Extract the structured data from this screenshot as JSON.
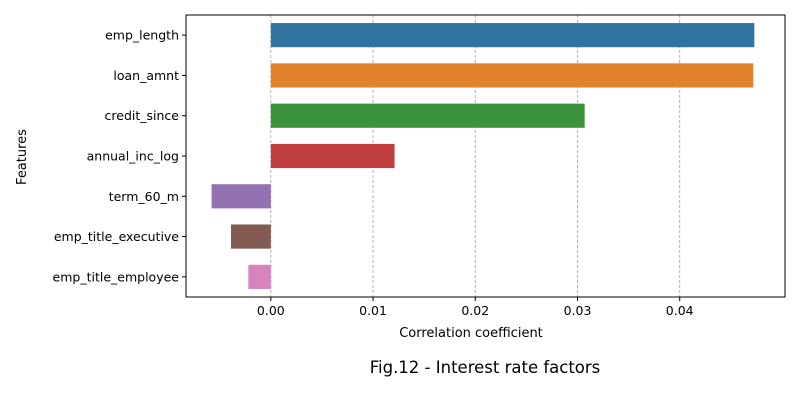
{
  "chart_data": {
    "type": "bar",
    "orientation": "horizontal",
    "categories": [
      "emp_length",
      "loan_amnt",
      "credit_since",
      "annual_inc_log",
      "term_60_m",
      "emp_title_executive",
      "emp_title_employee"
    ],
    "values": [
      0.0473,
      0.0472,
      0.0307,
      0.0121,
      -0.0058,
      -0.0039,
      -0.0022
    ],
    "colors": [
      "#3274a1",
      "#e1812c",
      "#3a923a",
      "#c03d3e",
      "#9372b2",
      "#845b53",
      "#d684bd"
    ],
    "xlabel": "Correlation coefficient",
    "ylabel": "Features",
    "xlim": [
      -0.0083,
      0.0503
    ],
    "xticks": [
      0.0,
      0.01,
      0.02,
      0.03,
      0.04
    ],
    "xtick_labels": [
      "0.00",
      "0.01",
      "0.02",
      "0.03",
      "0.04"
    ],
    "grid": "vertical dashed",
    "caption": "Fig.12 - Interest rate factors"
  }
}
